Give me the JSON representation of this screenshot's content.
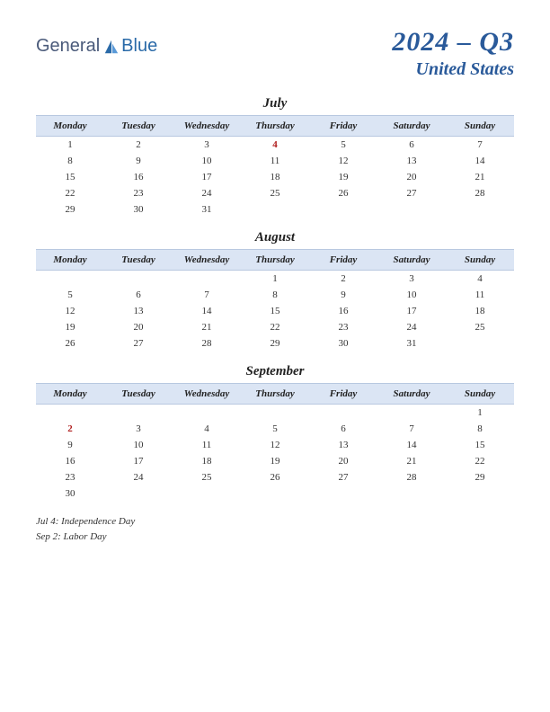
{
  "logo": {
    "part1": "General",
    "part2": "Blue"
  },
  "title": {
    "quarter": "2024 – Q3",
    "country": "United States"
  },
  "colors": {
    "header_bg": "#dbe5f4",
    "header_border": "#b8c8e0",
    "title_color": "#2a5a9a",
    "holiday_color": "#b02020",
    "text_color": "#333333",
    "background": "#ffffff"
  },
  "day_headers": [
    "Monday",
    "Tuesday",
    "Wednesday",
    "Thursday",
    "Friday",
    "Saturday",
    "Sunday"
  ],
  "months": [
    {
      "name": "July",
      "weeks": [
        [
          "1",
          "2",
          "3",
          "4",
          "5",
          "6",
          "7"
        ],
        [
          "8",
          "9",
          "10",
          "11",
          "12",
          "13",
          "14"
        ],
        [
          "15",
          "16",
          "17",
          "18",
          "19",
          "20",
          "21"
        ],
        [
          "22",
          "23",
          "24",
          "25",
          "26",
          "27",
          "28"
        ],
        [
          "29",
          "30",
          "31",
          "",
          "",
          "",
          ""
        ]
      ],
      "holidays": [
        "4"
      ]
    },
    {
      "name": "August",
      "weeks": [
        [
          "",
          "",
          "",
          "1",
          "2",
          "3",
          "4"
        ],
        [
          "5",
          "6",
          "7",
          "8",
          "9",
          "10",
          "11"
        ],
        [
          "12",
          "13",
          "14",
          "15",
          "16",
          "17",
          "18"
        ],
        [
          "19",
          "20",
          "21",
          "22",
          "23",
          "24",
          "25"
        ],
        [
          "26",
          "27",
          "28",
          "29",
          "30",
          "31",
          ""
        ]
      ],
      "holidays": []
    },
    {
      "name": "September",
      "weeks": [
        [
          "",
          "",
          "",
          "",
          "",
          "",
          "1"
        ],
        [
          "2",
          "3",
          "4",
          "5",
          "6",
          "7",
          "8"
        ],
        [
          "9",
          "10",
          "11",
          "12",
          "13",
          "14",
          "15"
        ],
        [
          "16",
          "17",
          "18",
          "19",
          "20",
          "21",
          "22"
        ],
        [
          "23",
          "24",
          "25",
          "26",
          "27",
          "28",
          "29"
        ],
        [
          "30",
          "",
          "",
          "",
          "",
          "",
          ""
        ]
      ],
      "holidays": [
        "2"
      ]
    }
  ],
  "holiday_list": [
    "Jul 4: Independence Day",
    "Sep 2: Labor Day"
  ]
}
